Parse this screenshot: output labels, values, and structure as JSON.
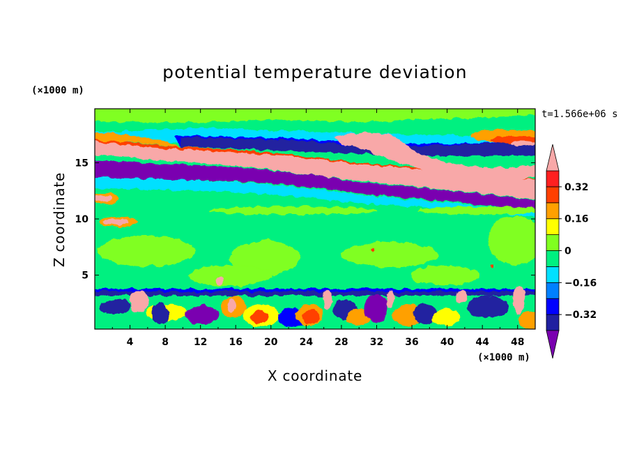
{
  "chart_data": {
    "type": "heatmap",
    "title": "potential temperature deviation",
    "xlabel": "X coordinate",
    "ylabel": "Z coordinate",
    "x_unit": "(×1000 m)",
    "y_unit": "(×1000 m)",
    "time_label": "t=1.566e+06 s",
    "xlim": [
      0,
      50
    ],
    "ylim": [
      0.2,
      19.8
    ],
    "x_ticks": [
      4,
      8,
      12,
      16,
      20,
      24,
      28,
      32,
      36,
      40,
      44,
      48
    ],
    "x_tick_labels": [
      "4",
      "8",
      "12",
      "16",
      "20",
      "24",
      "28",
      "32",
      "36",
      "40",
      "44",
      "48"
    ],
    "y_ticks": [
      5,
      10,
      15
    ],
    "y_tick_labels": [
      "5",
      "10",
      "15"
    ],
    "colorbar": {
      "levels": [
        -0.4,
        -0.32,
        -0.24,
        -0.16,
        -0.08,
        0,
        0.08,
        0.16,
        0.24,
        0.32,
        0.4
      ],
      "colors": [
        "#7a00b0",
        "#2020a0",
        "#0000ff",
        "#0080ff",
        "#00e0ff",
        "#00f080",
        "#80ff20",
        "#ffff00",
        "#ffa000",
        "#ff4000",
        "#ff2020",
        "#f8a8a8"
      ],
      "labels": [
        {
          "value": -0.32,
          "text": "−0.32"
        },
        {
          "value": -0.16,
          "text": "−0.16"
        },
        {
          "value": 0,
          "text": "0"
        },
        {
          "value": 0.16,
          "text": "0.16"
        },
        {
          "value": 0.32,
          "text": "0.32"
        }
      ]
    },
    "grid": false,
    "legend_position": "right",
    "features": [
      {
        "name": "upper negative band",
        "value": -0.45,
        "path": [
          [
            0,
            14.0
          ],
          [
            10,
            13.3
          ],
          [
            20,
            12.6
          ],
          [
            30,
            11.7
          ],
          [
            40,
            10.9
          ],
          [
            50,
            10.2
          ]
        ]
      },
      {
        "name": "upper positive band",
        "value": 0.45,
        "path": [
          [
            0,
            17.1
          ],
          [
            10,
            16.4
          ],
          [
            20,
            15.6
          ],
          [
            30,
            14.7
          ],
          [
            40,
            13.5
          ],
          [
            50,
            12.6
          ]
        ]
      }
    ]
  }
}
